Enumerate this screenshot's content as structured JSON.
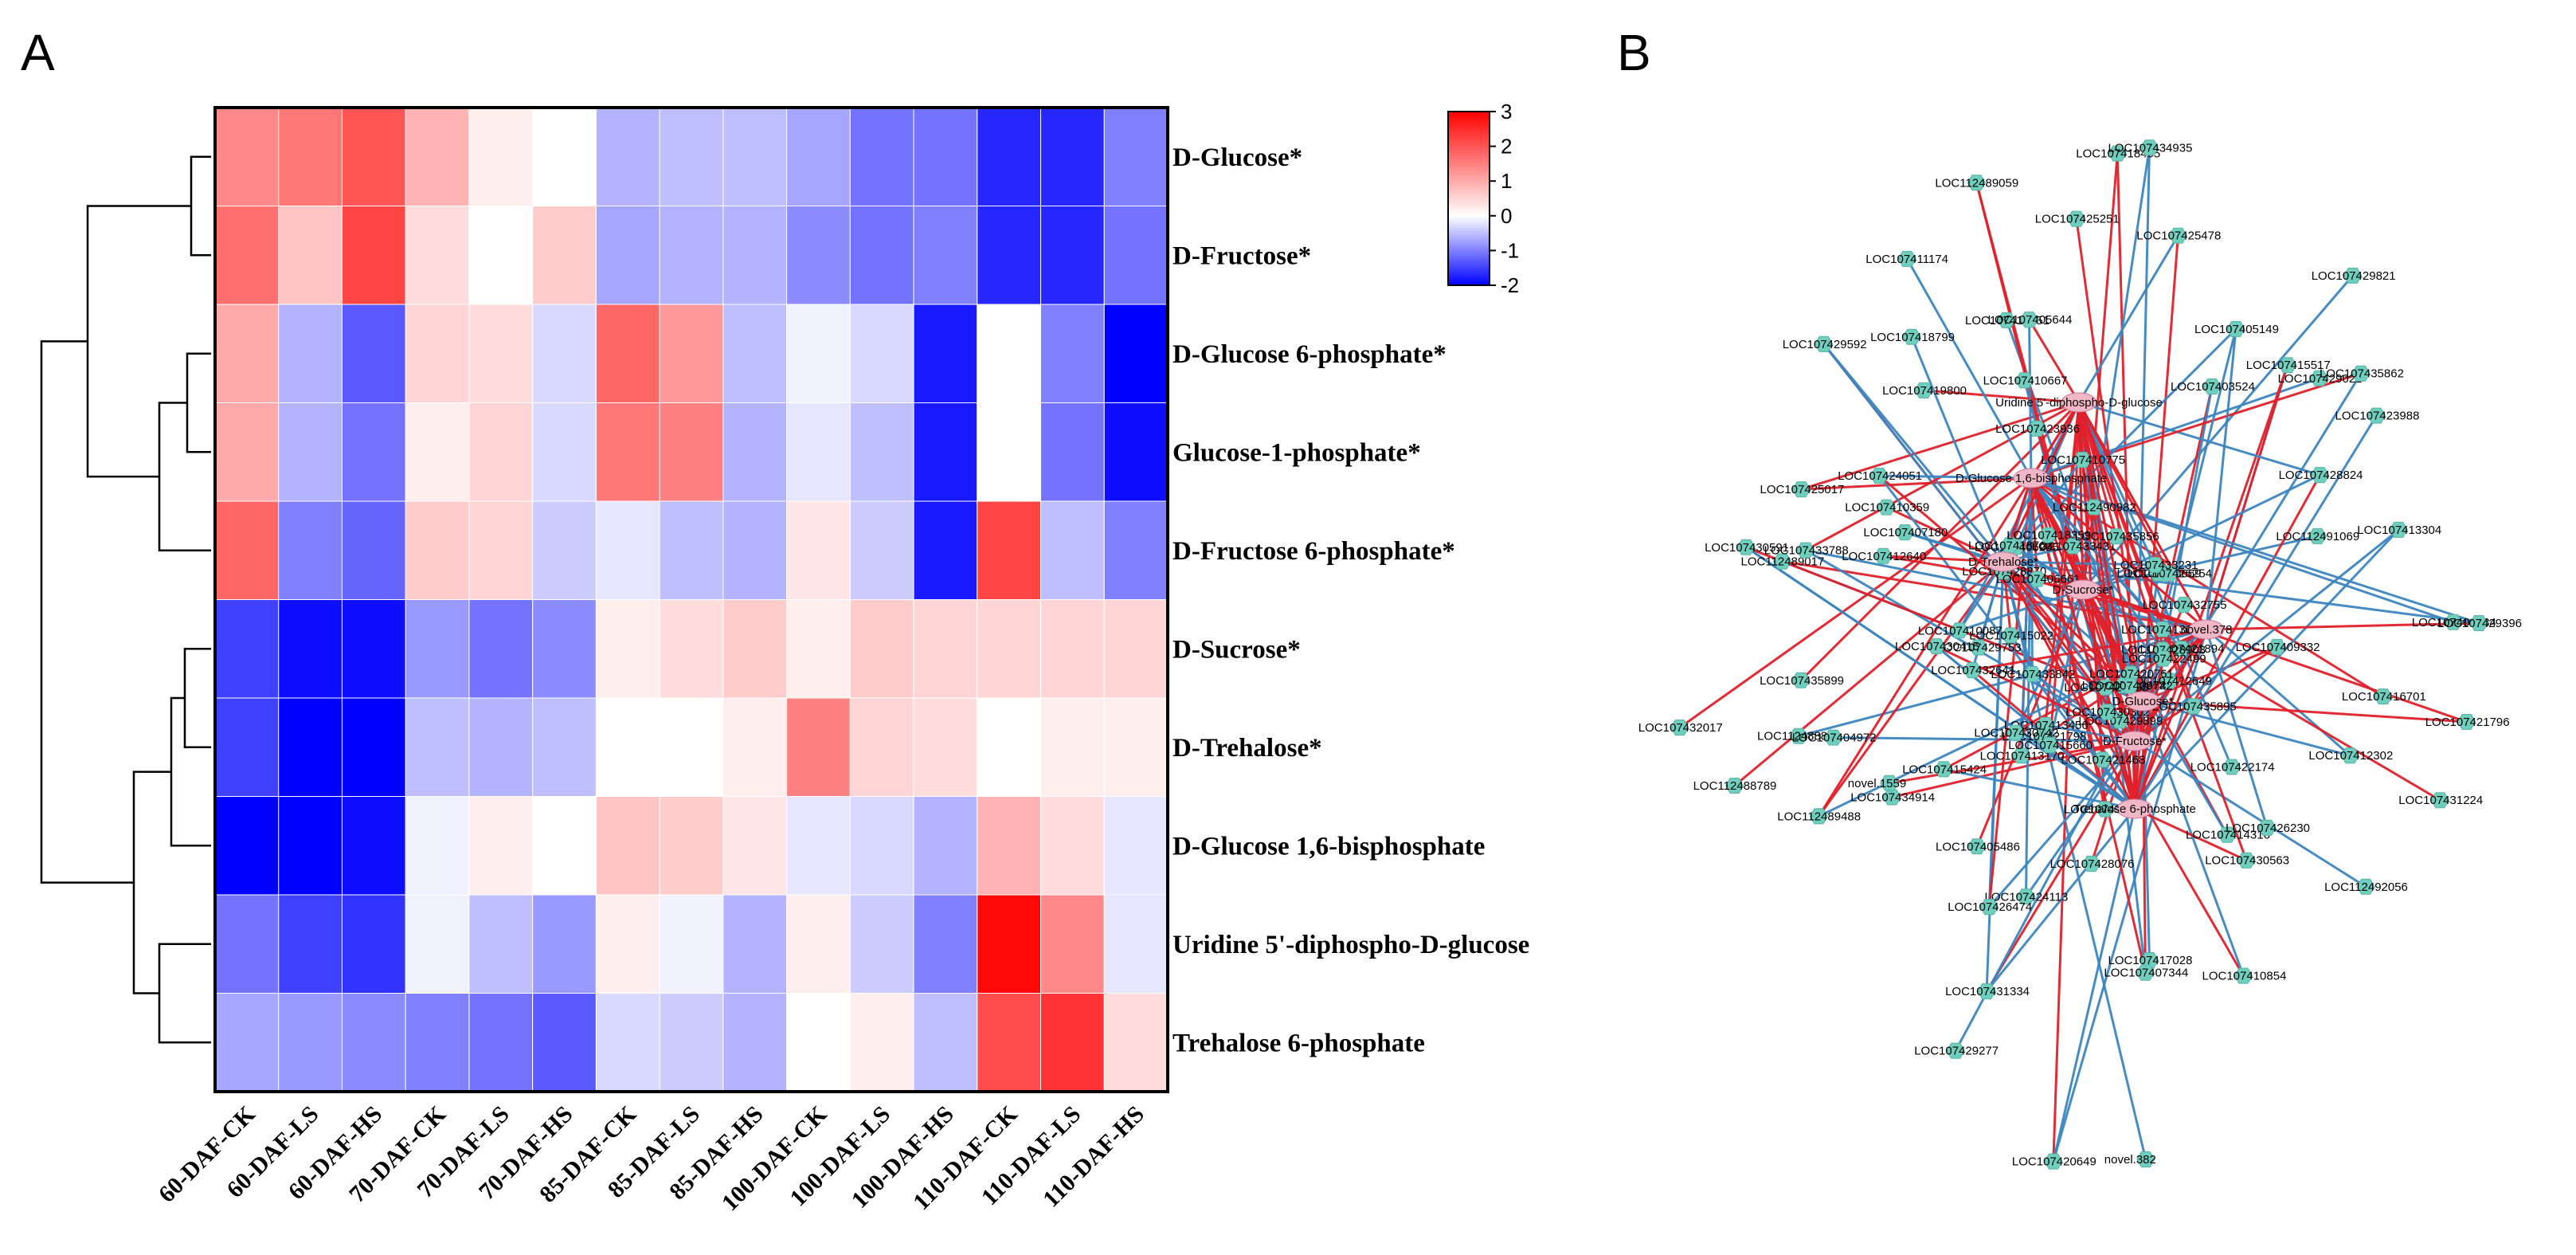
{
  "panels": {
    "a_letter": "A",
    "b_letter": "B"
  },
  "chart_data": [
    {
      "type": "heatmap",
      "title": "",
      "rows": [
        "D-Glucose*",
        "D-Fructose*",
        "D-Glucose 6-phosphate*",
        "Glucose-1-phosphate*",
        "D-Fructose 6-phosphate*",
        "D-Sucrose*",
        "D-Trehalose*",
        "D-Glucose 1,6-bisphosphate",
        "Uridine 5'-diphospho-D-glucose",
        "Trehalose 6-phosphate"
      ],
      "columns": [
        "60-DAF-CK",
        "60-DAF-LS",
        "60-DAF-HS",
        "70-DAF-CK",
        "70-DAF-LS",
        "70-DAF-HS",
        "85-DAF-CK",
        "85-DAF-LS",
        "85-DAF-HS",
        "100-DAF-CK",
        "100-DAF-LS",
        "100-DAF-HS",
        "110-DAF-CK",
        "110-DAF-LS",
        "110-DAF-HS"
      ],
      "values": [
        [
          1.4,
          1.6,
          2.0,
          0.9,
          0.2,
          0.0,
          -0.6,
          -0.5,
          -0.5,
          -0.7,
          -1.1,
          -1.1,
          -1.7,
          -1.7,
          -1.0
        ],
        [
          1.7,
          0.7,
          2.2,
          0.4,
          0.0,
          0.6,
          -0.7,
          -0.6,
          -0.6,
          -0.9,
          -1.1,
          -1.0,
          -1.7,
          -1.7,
          -1.1
        ],
        [
          1.0,
          -0.6,
          -1.3,
          0.5,
          0.4,
          -0.3,
          1.8,
          1.2,
          -0.5,
          -0.1,
          -0.3,
          -1.8,
          0.0,
          -1.0,
          -2.0
        ],
        [
          1.0,
          -0.6,
          -1.1,
          0.2,
          0.5,
          -0.3,
          1.6,
          1.5,
          -0.6,
          -0.2,
          -0.5,
          -1.8,
          0.0,
          -1.1,
          -1.9
        ],
        [
          1.8,
          -1.0,
          -1.2,
          0.6,
          0.5,
          -0.4,
          -0.2,
          -0.5,
          -0.6,
          0.3,
          -0.4,
          -1.8,
          2.2,
          -0.5,
          -1.0
        ],
        [
          -1.5,
          -1.9,
          -1.9,
          -0.8,
          -1.1,
          -0.9,
          0.2,
          0.4,
          0.6,
          0.2,
          0.6,
          0.5,
          0.5,
          0.5,
          0.5
        ],
        [
          -1.5,
          -2.0,
          -2.0,
          -0.5,
          -0.6,
          -0.5,
          0.0,
          0.0,
          0.2,
          1.5,
          0.5,
          0.4,
          0.0,
          0.2,
          0.2
        ],
        [
          -2.0,
          -2.0,
          -1.9,
          -0.1,
          0.2,
          0.0,
          0.7,
          0.6,
          0.3,
          -0.2,
          -0.3,
          -0.6,
          0.9,
          0.4,
          -0.2
        ],
        [
          -1.1,
          -1.5,
          -1.6,
          -0.1,
          -0.5,
          -0.8,
          0.2,
          -0.1,
          -0.6,
          0.2,
          -0.4,
          -1.0,
          2.9,
          1.4,
          -0.2
        ],
        [
          -0.7,
          -0.8,
          -0.9,
          -1.0,
          -1.1,
          -1.3,
          -0.3,
          -0.4,
          -0.6,
          0.0,
          0.2,
          -0.5,
          2.1,
          2.4,
          0.4
        ]
      ],
      "colorbar": {
        "min": -2,
        "max": 3,
        "ticks": [
          "3",
          "2",
          "1",
          "0",
          "-1",
          "-2"
        ],
        "colors": {
          "low": "#0000ff",
          "mid": "#ffffff",
          "high": "#ff0000"
        }
      },
      "row_dendrogram": "present",
      "cell_border_color": "#ffffff"
    },
    {
      "type": "network",
      "title": "",
      "hub_nodes": [
        "D-Glucose 1,6-bisphosphate",
        "Uridine 5'-diphospho-D-glucose",
        "D-Trehalose*",
        "D-Sucrose*",
        "D-Glucose*",
        "D-Fructose*",
        "Trehalose 6-phosphate",
        "novel.378"
      ],
      "gene_nodes": [
        "LOC107416701",
        "LOC107412302",
        "LOC107431224",
        "LOC107410854",
        "LOC107417028",
        "LOC107414316",
        "LOC107428076",
        "novel.382",
        "LOC107420649",
        "LOC107431334",
        "LOC107434914",
        "LOC112488801",
        "LOC107404972",
        "LOC107435899",
        "LOC107432017",
        "LOC112489017",
        "LOC107425017",
        "LOC107410359",
        "LOC107407180",
        "LOC107429592",
        "LOC107416351",
        "LOC112489059",
        "LOC107410667",
        "LOC107423936",
        "LOC107418465",
        "LOC107429821",
        "LOC107429021",
        "LOC107403524",
        "LOC107415517",
        "LOC112491069",
        "LOC107428824",
        "LOC107409332",
        "LOC107421796",
        "LOC107426230",
        "LOC107422174",
        "LOC112492056",
        "LOC107430563",
        "LOC107431547",
        "LOC107407344",
        "LOC107405486",
        "LOC107424113",
        "LOC107426474",
        "LOC107429277",
        "LOC107415424",
        "novel.1559",
        "LOC112489488",
        "LOC112488789",
        "LOC107433788",
        "LOC107430591",
        "LOC107424051",
        "LOC107412640",
        "LOC107419800",
        "LOC107418799",
        "LOC107405644",
        "LOC107411174",
        "LOC107425251",
        "LOC107434935",
        "LOC107425478",
        "LOC107435862",
        "LOC107423988",
        "LOC107405149",
        "LOC107413304",
        "LOC107406234",
        "LOC107429396",
        "LOC107413649",
        "LOC107412649",
        "LOC107410672",
        "LOC107420761",
        "LOC107426855",
        "LOC107421468",
        "LOC107429899",
        "LOC107421798",
        "LOC107413456",
        "LOC107413170",
        "LOC107415660",
        "LOC107430742",
        "LOC107433842",
        "LOC107432641",
        "LOC107415022",
        "LOC107429753",
        "LOC107430415",
        "LOC107410087",
        "LOC107428870",
        "LOC107406235",
        "LOC107418763",
        "LOC107418359",
        "LOC107406661",
        "LOC107410775",
        "LOC107433431",
        "LOC112490982",
        "LOC107410669",
        "LOC107435856",
        "LOC107432755",
        "LOC107426254",
        "LOC107433231",
        "LOC107421894",
        "LOC107428903",
        "LOC107422499",
        "LOC107435895",
        "LOC107429742",
        "LOC107430302"
      ],
      "edge_colors": {
        "positive": "#e0202a",
        "negative": "#3c86c0"
      },
      "node_color": "#6fcfbf"
    }
  ]
}
